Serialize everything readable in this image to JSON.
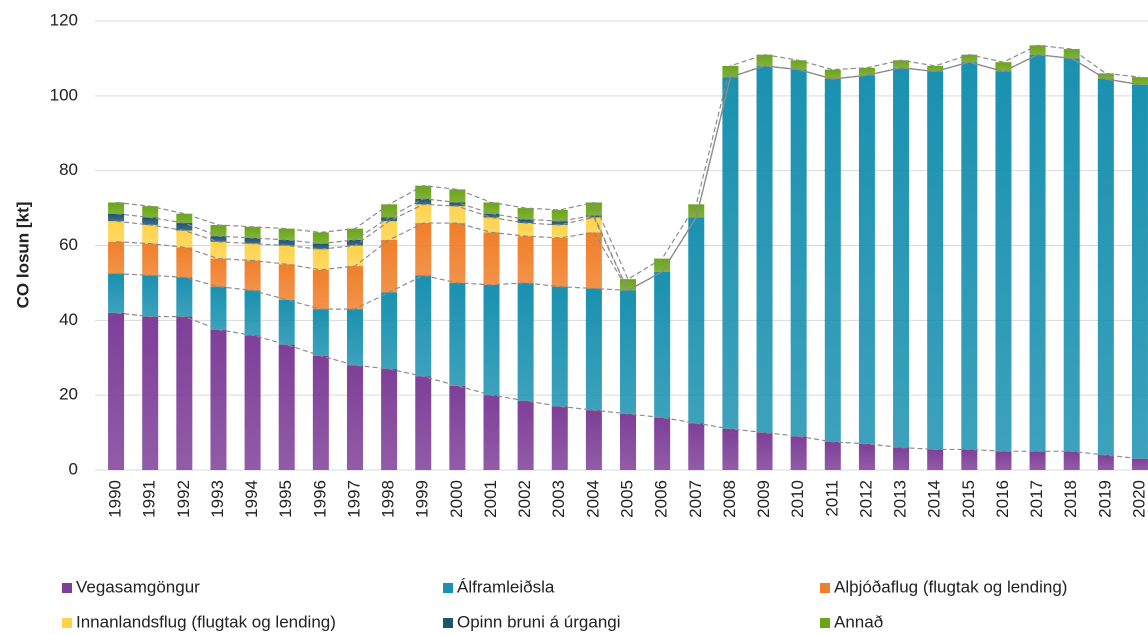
{
  "chart_data": {
    "type": "stacked-bar",
    "y_label": "CO losun [kt]",
    "categories": [
      "1990",
      "1991",
      "1992",
      "1993",
      "1994",
      "1995",
      "1996",
      "1997",
      "1998",
      "1999",
      "2000",
      "2001",
      "2002",
      "2003",
      "2004",
      "2005",
      "2006",
      "2007",
      "2008",
      "2009",
      "2010",
      "2011",
      "2012",
      "2013",
      "2014",
      "2015",
      "2016",
      "2017",
      "2018",
      "2019",
      "2020"
    ],
    "series": [
      {
        "name": "Vegasamgöngur",
        "color": "#7e3f98",
        "values": [
          42,
          41,
          41,
          37.5,
          36,
          33.5,
          30.5,
          28,
          27,
          25,
          22.5,
          20,
          18.5,
          17,
          16,
          15,
          14,
          12.5,
          11,
          10,
          9,
          7.5,
          7,
          6,
          5.5,
          5.5,
          5,
          5,
          5,
          4,
          3
        ]
      },
      {
        "name": "Álframleiðsla",
        "color": "#1a91b0",
        "values": [
          10.5,
          11,
          10.5,
          11.5,
          12,
          12,
          12.5,
          15,
          20.5,
          27,
          27.5,
          29.5,
          31.5,
          32,
          32.5,
          33,
          39,
          55,
          94,
          98,
          98,
          97,
          98.5,
          101.5,
          101,
          103.5,
          101.5,
          106,
          105,
          100.5,
          100
        ]
      },
      {
        "name": "Alþjóðaflug (flugtak og lending)",
        "color": "#f07f2a",
        "values": [
          8.5,
          8.5,
          8,
          7.5,
          8,
          9.5,
          10.5,
          11.5,
          14,
          14,
          16,
          14,
          12.5,
          13,
          15,
          0,
          0,
          0,
          0,
          0,
          0,
          0,
          0,
          0,
          0,
          0,
          0,
          0,
          0,
          0,
          0
        ]
      },
      {
        "name": "Innanlandsflug (flugtak og lending)",
        "color": "#ffd24a",
        "values": [
          5.5,
          5,
          4.5,
          4.5,
          4.5,
          5,
          5.5,
          5.5,
          5,
          5,
          4.5,
          4,
          3.5,
          3.5,
          4,
          0,
          0,
          0,
          0,
          0,
          0,
          0,
          0,
          0,
          0,
          0,
          0,
          0,
          0,
          0,
          0
        ]
      },
      {
        "name": "Opinn bruni á úrgangi",
        "color": "#1d5470",
        "values": [
          2,
          2,
          2,
          1.5,
          1.5,
          1.5,
          1.5,
          1.5,
          1,
          1.5,
          1,
          1,
          1,
          1,
          0.5,
          0,
          0,
          0,
          0,
          0,
          0,
          0,
          0,
          0,
          0,
          0,
          0,
          0,
          0,
          0,
          0
        ]
      },
      {
        "name": "Annað",
        "color": "#6aa517",
        "values": [
          3,
          3,
          2.5,
          3,
          3,
          3,
          3,
          3,
          3.5,
          3.5,
          3.5,
          3,
          3,
          3,
          3.5,
          3,
          3.5,
          3.5,
          3,
          3,
          2.5,
          2.5,
          2,
          2,
          1.5,
          2,
          2.5,
          2.5,
          2.5,
          1.5,
          2
        ]
      }
    ],
    "ylim": [
      0,
      120
    ],
    "yticks": [
      0,
      20,
      40,
      60,
      80,
      100,
      120
    ],
    "grid": true
  }
}
